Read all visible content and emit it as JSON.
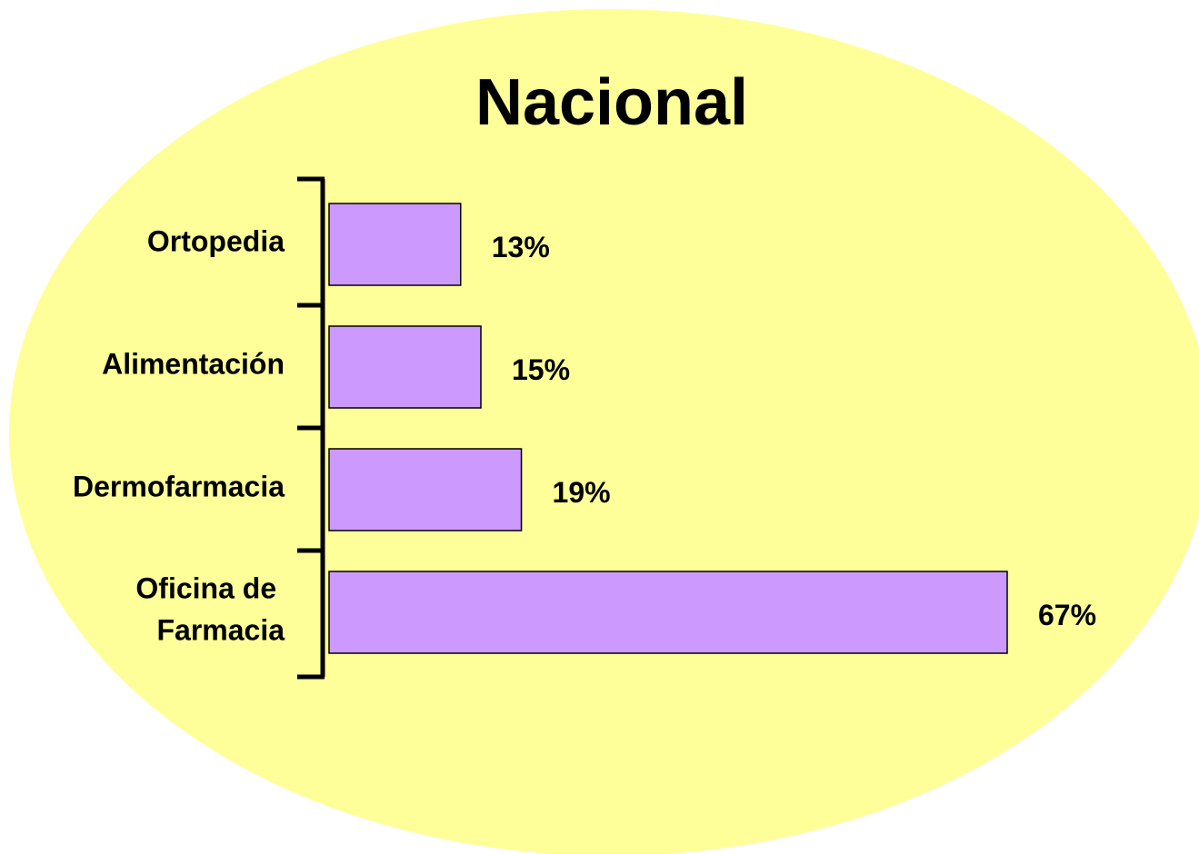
{
  "chart_data": {
    "type": "bar",
    "orientation": "horizontal",
    "title": "Nacional",
    "categories": [
      "Ortopedia",
      "Alimentación",
      "Dermofarmacia",
      "Oficina de Farmacia"
    ],
    "values": [
      13,
      15,
      19,
      67
    ],
    "value_labels": [
      "13%",
      "15%",
      "19%",
      "67%"
    ],
    "color": "#cc99ff",
    "background_color": "#ffff99"
  }
}
